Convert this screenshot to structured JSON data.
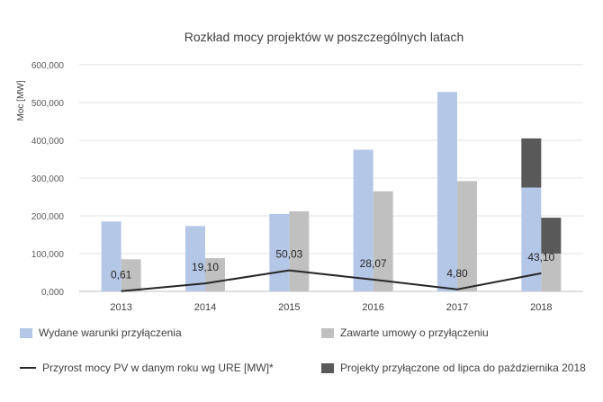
{
  "chart_data": {
    "type": "bar",
    "title": "Rozkład mocy projektów w poszczególnych latach",
    "ylabel": "Moc [MW]",
    "xlabel": "",
    "ylim": [
      0,
      600000
    ],
    "yticks": [
      "0,000",
      "100,000",
      "200,000",
      "300,000",
      "400,000",
      "500,000",
      "600,000"
    ],
    "categories": [
      "2013",
      "2014",
      "2015",
      "2016",
      "2017",
      "2018"
    ],
    "grid": true,
    "legend_position": "bottom",
    "series": [
      {
        "name": "Wydane warunki przyłączenia",
        "kind": "bar",
        "color": "#b4c7e7",
        "values": [
          185000,
          173000,
          205000,
          375000,
          528000,
          275000
        ]
      },
      {
        "name": "Zawarte umowy o przyłączeniu",
        "kind": "bar",
        "color": "#c0c0c0",
        "values": [
          85000,
          88000,
          212000,
          265000,
          292000,
          100000
        ]
      },
      {
        "name": "Projekty przyłączone od lipca do października 2018",
        "kind": "stacked-bar",
        "color": "#595959",
        "stack_on": [
          0,
          1
        ],
        "values": [
          null,
          null,
          null,
          null,
          null,
          [
            130000,
            95000
          ]
        ]
      },
      {
        "name": "Przyrost mocy PV w danym roku wg URE [MW]*",
        "kind": "line",
        "color": "#262626",
        "values": [
          0.61,
          19.1,
          50.03,
          28.07,
          4.8,
          43.1
        ],
        "labels": [
          "0,61",
          "19,10",
          "50,03",
          "28,07",
          "4,80",
          "43,10"
        ]
      }
    ]
  }
}
